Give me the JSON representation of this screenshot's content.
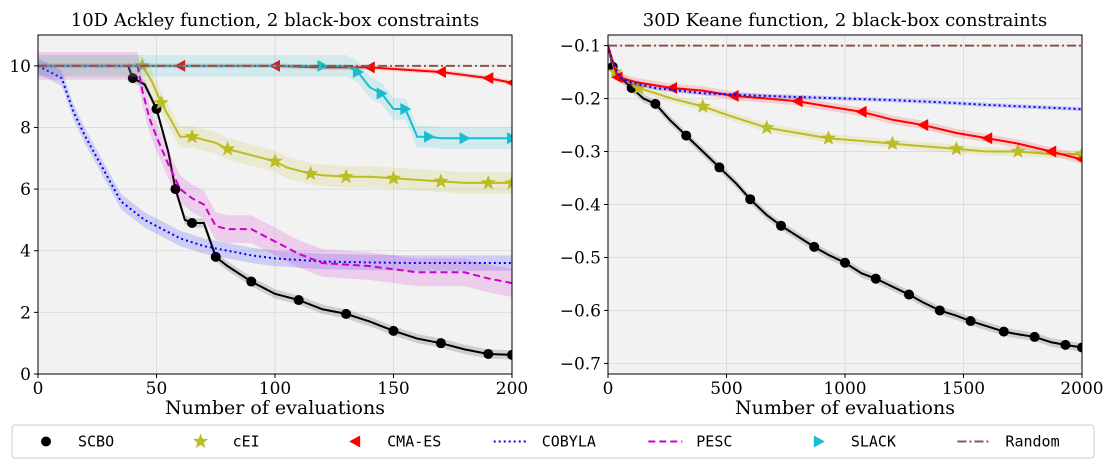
{
  "chart_data": [
    {
      "type": "line",
      "title": "10D Ackley function, 2 black-box constraints",
      "xlabel": "Number of evaluations",
      "ylabel": "",
      "xlim": [
        0,
        200
      ],
      "ylim": [
        0,
        11
      ],
      "xticks": [
        "0",
        "50",
        "100",
        "150",
        "200"
      ],
      "yticks": [
        "0",
        "2",
        "4",
        "6",
        "8",
        "10"
      ],
      "grid": true,
      "series": [
        {
          "name": "SCBO",
          "x": [
            38,
            40,
            45,
            50,
            55,
            58,
            62,
            65,
            70,
            75,
            80,
            90,
            100,
            110,
            120,
            130,
            140,
            150,
            160,
            170,
            180,
            190,
            200
          ],
          "y": [
            10,
            9.6,
            9.4,
            8.6,
            7.2,
            6.0,
            5.0,
            4.9,
            4.9,
            3.8,
            3.5,
            3.0,
            2.6,
            2.4,
            2.1,
            1.95,
            1.7,
            1.4,
            1.15,
            1.0,
            0.8,
            0.65,
            0.62
          ],
          "band": 0.15
        },
        {
          "name": "cEI",
          "x": [
            0,
            44,
            48,
            52,
            60,
            65,
            75,
            80,
            90,
            100,
            105,
            115,
            120,
            130,
            140,
            150,
            160,
            170,
            180,
            190,
            200
          ],
          "y": [
            10,
            10,
            9.5,
            8.8,
            7.7,
            7.7,
            7.5,
            7.3,
            7.1,
            6.9,
            6.7,
            6.5,
            6.45,
            6.4,
            6.4,
            6.35,
            6.3,
            6.25,
            6.2,
            6.2,
            6.2
          ],
          "band": 0.35
        },
        {
          "name": "CMA-ES",
          "x": [
            0,
            60,
            80,
            100,
            120,
            140,
            160,
            170,
            180,
            190,
            200
          ],
          "y": [
            10,
            10,
            10,
            10,
            9.95,
            9.95,
            9.85,
            9.8,
            9.7,
            9.6,
            9.45
          ],
          "band": 0.08
        },
        {
          "name": "COBYLA",
          "x": [
            0,
            10,
            15,
            20,
            25,
            30,
            35,
            40,
            45,
            50,
            60,
            70,
            80,
            90,
            100,
            110,
            120,
            140,
            160,
            180,
            200
          ],
          "y": [
            10,
            9.6,
            8.5,
            7.7,
            7.0,
            6.3,
            5.6,
            5.3,
            5.0,
            4.8,
            4.4,
            4.15,
            4.0,
            3.85,
            3.75,
            3.7,
            3.65,
            3.62,
            3.6,
            3.6,
            3.6
          ],
          "band": 0.25
        },
        {
          "name": "PESC",
          "x": [
            0,
            42,
            44,
            47,
            50,
            55,
            60,
            65,
            70,
            75,
            80,
            90,
            95,
            100,
            110,
            120,
            140,
            160,
            180,
            190,
            200
          ],
          "y": [
            10,
            10,
            9.2,
            8.3,
            7.7,
            6.8,
            6.0,
            5.7,
            5.5,
            4.8,
            4.7,
            4.7,
            4.5,
            4.3,
            3.9,
            3.6,
            3.5,
            3.3,
            3.3,
            3.1,
            2.95
          ],
          "band": 0.45
        },
        {
          "name": "SLACK",
          "x": [
            0,
            120,
            130,
            135,
            140,
            145,
            150,
            155,
            160,
            165,
            170,
            180,
            190,
            200
          ],
          "y": [
            10,
            10,
            10,
            9.8,
            9.3,
            9.1,
            8.6,
            8.6,
            7.7,
            7.7,
            7.65,
            7.65,
            7.65,
            7.65
          ],
          "band": 0.35
        },
        {
          "name": "Random",
          "x": [
            0,
            200
          ],
          "y": [
            10,
            10
          ],
          "band": 0
        }
      ]
    },
    {
      "type": "line",
      "title": "30D Keane function, 2 black-box constraints",
      "xlabel": "Number of evaluations",
      "ylabel": "",
      "xlim": [
        0,
        2000
      ],
      "ylim": [
        -0.72,
        -0.08
      ],
      "xticks": [
        "0",
        "500",
        "1000",
        "1500",
        "2000"
      ],
      "yticks": [
        "−0.7",
        "−0.6",
        "−0.5",
        "−0.4",
        "−0.3",
        "−0.2",
        "−0.1"
      ],
      "grid": true,
      "series": [
        {
          "name": "SCBO",
          "x": [
            0,
            20,
            50,
            100,
            150,
            200,
            260,
            330,
            400,
            470,
            540,
            600,
            670,
            730,
            800,
            870,
            930,
            1000,
            1070,
            1130,
            1200,
            1270,
            1330,
            1400,
            1470,
            1530,
            1600,
            1670,
            1730,
            1800,
            1870,
            1930,
            2000
          ],
          "y": [
            -0.1,
            -0.14,
            -0.16,
            -0.18,
            -0.2,
            -0.21,
            -0.24,
            -0.27,
            -0.3,
            -0.33,
            -0.36,
            -0.39,
            -0.42,
            -0.44,
            -0.46,
            -0.48,
            -0.495,
            -0.51,
            -0.53,
            -0.54,
            -0.555,
            -0.57,
            -0.585,
            -0.6,
            -0.61,
            -0.62,
            -0.63,
            -0.64,
            -0.645,
            -0.65,
            -0.66,
            -0.665,
            -0.67
          ],
          "band": 0.008
        },
        {
          "name": "cEI",
          "x": [
            0,
            30,
            60,
            130,
            270,
            400,
            530,
            670,
            800,
            930,
            1070,
            1200,
            1330,
            1470,
            1600,
            1730,
            1870,
            2000
          ],
          "y": [
            -0.1,
            -0.15,
            -0.16,
            -0.18,
            -0.2,
            -0.215,
            -0.235,
            -0.255,
            -0.265,
            -0.275,
            -0.28,
            -0.285,
            -0.29,
            -0.295,
            -0.3,
            -0.3,
            -0.305,
            -0.305
          ],
          "band": 0.008
        },
        {
          "name": "CMA-ES",
          "x": [
            0,
            40,
            130,
            270,
            400,
            530,
            670,
            800,
            930,
            1070,
            1200,
            1330,
            1470,
            1600,
            1730,
            1870,
            2000
          ],
          "y": [
            -0.1,
            -0.16,
            -0.17,
            -0.18,
            -0.185,
            -0.195,
            -0.2,
            -0.205,
            -0.215,
            -0.225,
            -0.24,
            -0.25,
            -0.265,
            -0.275,
            -0.285,
            -0.3,
            -0.315
          ],
          "band": 0.008
        },
        {
          "name": "COBYLA",
          "x": [
            0,
            20,
            50,
            100,
            200,
            300,
            400,
            500,
            600,
            800,
            1000,
            1200,
            1400,
            1600,
            1800,
            2000
          ],
          "y": [
            -0.1,
            -0.13,
            -0.16,
            -0.17,
            -0.18,
            -0.185,
            -0.19,
            -0.192,
            -0.194,
            -0.197,
            -0.2,
            -0.203,
            -0.207,
            -0.212,
            -0.216,
            -0.22
          ],
          "band": 0.004
        },
        {
          "name": "Random",
          "x": [
            0,
            2000
          ],
          "y": [
            -0.1,
            -0.1
          ],
          "band": 0
        }
      ]
    }
  ],
  "legend": {
    "position": "bottom",
    "entries": [
      {
        "name": "SCBO",
        "color": "#000000",
        "marker": "circle",
        "dash": "solid"
      },
      {
        "name": "cEI",
        "color": "#bcbd22",
        "marker": "star",
        "dash": "solid"
      },
      {
        "name": "CMA-ES",
        "color": "#ff0000",
        "marker": "triangle-left",
        "dash": "solid"
      },
      {
        "name": "COBYLA",
        "color": "#0000ff",
        "marker": "none",
        "dash": "dotted"
      },
      {
        "name": "PESC",
        "color": "#cc00cc",
        "marker": "none",
        "dash": "dashed"
      },
      {
        "name": "SLACK",
        "color": "#17becf",
        "marker": "triangle-right",
        "dash": "solid"
      },
      {
        "name": "Random",
        "color": "#8c564b",
        "marker": "none",
        "dash": "dashdot"
      }
    ]
  },
  "colors": {
    "plot_background": "#f2f2f2",
    "grid": "#dddddd",
    "axis": "#000000"
  }
}
